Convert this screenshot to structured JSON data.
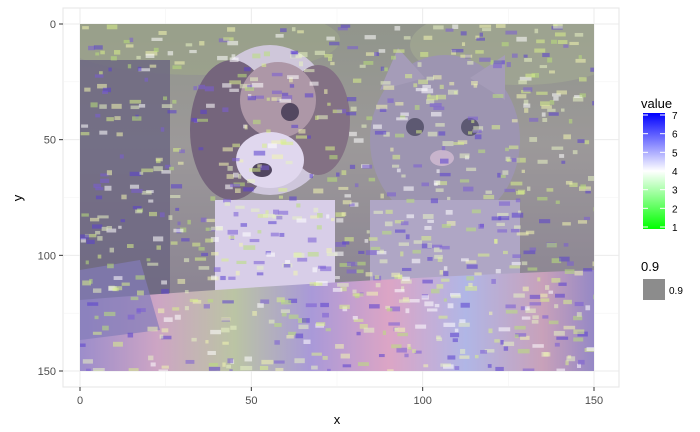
{
  "chart_data": {
    "type": "heatmap",
    "xlabel": "x",
    "ylabel": "y",
    "xlim": [
      0,
      150
    ],
    "ylim": [
      150,
      0
    ],
    "x_ticks": [
      0,
      50,
      100,
      150
    ],
    "y_ticks": [
      0,
      50,
      100,
      150
    ],
    "grid": true,
    "background_image": "photo of a beagle puppy and a grey tabby kitten sitting on a striped blanket",
    "fill_legend": {
      "title": "value",
      "ticks": [
        1,
        2,
        3,
        4,
        5,
        6,
        7
      ],
      "low_color": "#00ff00",
      "mid_color": "#ffffff",
      "high_color": "#0000ff"
    },
    "alpha_legend": {
      "title": "0.9",
      "key_label": "0.9",
      "key_color": "#8c8c8c"
    }
  }
}
